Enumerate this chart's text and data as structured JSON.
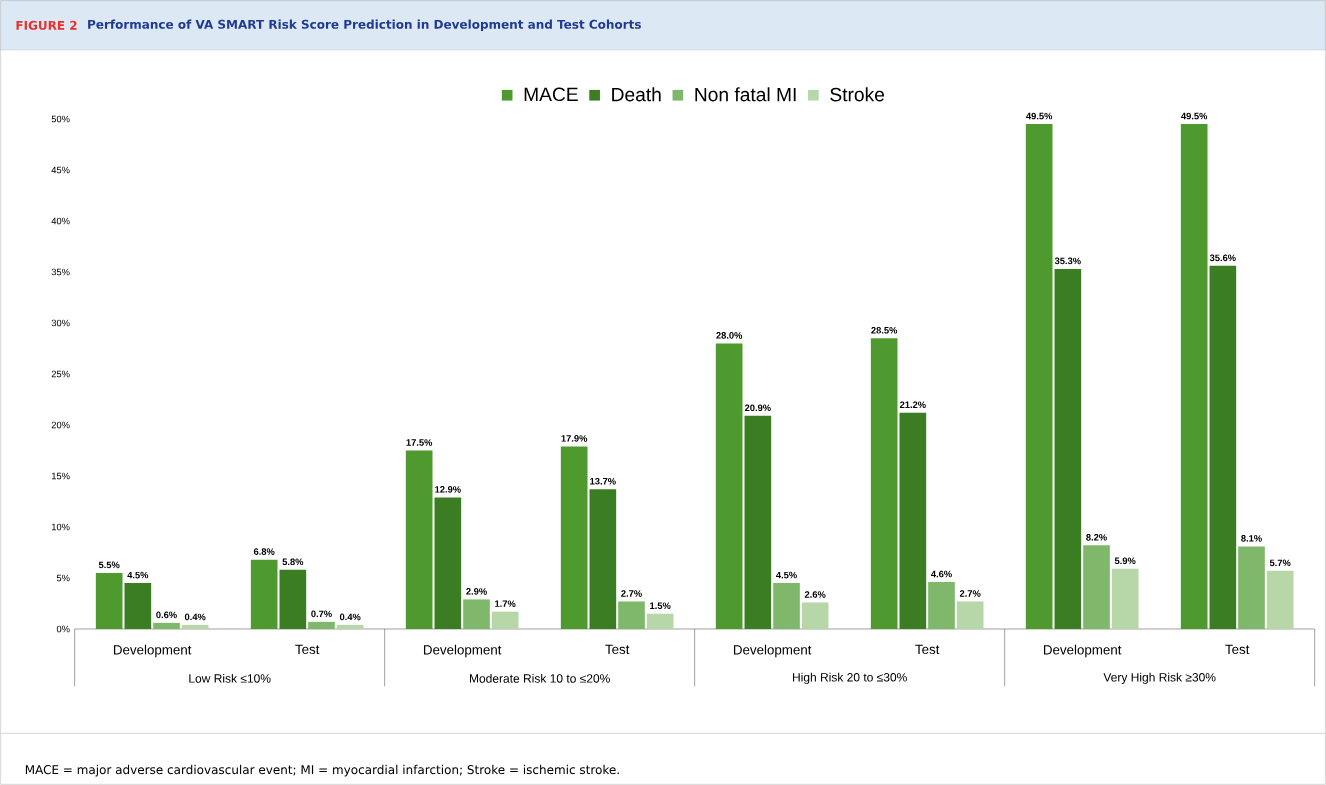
{
  "chart_data": {
    "type": "bar",
    "title": "Performance of VA SMART Risk Score Prediction in Development and Test Cohorts",
    "categories": [
      "Development",
      "Test",
      "Development",
      "Test",
      "Development",
      "Test",
      "Development",
      "Test"
    ],
    "series": [
      {
        "name": "MACE",
        "color": "#4e9a2f",
        "values": [
          5.5,
          6.8,
          17.5,
          17.9,
          28.0,
          28.5,
          49.5,
          49.5
        ],
        "value_labels": [
          "5.5%",
          "6.8%",
          "17.5%",
          "17.9%",
          "28.0%",
          "28.5%",
          "49.5%",
          "49.5%"
        ]
      },
      {
        "name": "Death",
        "color": "#3a7d22",
        "values": [
          4.5,
          5.8,
          12.9,
          13.7,
          20.9,
          21.2,
          35.3,
          35.6
        ],
        "value_labels": [
          "4.5%",
          "5.8%",
          "12.9%",
          "13.7%",
          "20.9%",
          "21.2%",
          "35.3%",
          "35.6%"
        ]
      },
      {
        "name": "Non fatal MI",
        "color": "#80b86b",
        "values": [
          0.6,
          0.7,
          2.9,
          2.7,
          4.5,
          4.6,
          8.2,
          8.1
        ],
        "value_labels": [
          "0.6%",
          "0.7%",
          "2.9%",
          "2.7%",
          "4.5%",
          "4.6%",
          "8.2%",
          "8.1%"
        ]
      },
      {
        "name": "Stroke",
        "color": "#b7d7a8",
        "values": [
          0.4,
          0.4,
          1.7,
          1.5,
          2.6,
          2.7,
          5.9,
          5.7
        ],
        "value_labels": [
          "0.4%",
          "0.4%",
          "1.7%",
          "1.5%",
          "2.6%",
          "2.7%",
          "5.9%",
          "5.7%"
        ]
      }
    ],
    "ylim": [
      0,
      50
    ],
    "yticks": [
      {
        "value": 0,
        "label": "0%"
      },
      {
        "value": 5,
        "label": "5%"
      },
      {
        "value": 10,
        "label": "10%"
      },
      {
        "value": 15,
        "label": "15%"
      },
      {
        "value": 20,
        "label": "20%"
      },
      {
        "value": 25,
        "label": "25%"
      },
      {
        "value": 30,
        "label": "30%"
      },
      {
        "value": 35,
        "label": "35%"
      },
      {
        "value": 40,
        "label": "40%"
      },
      {
        "value": 45,
        "label": "45%"
      },
      {
        "value": 50,
        "label": "50%"
      }
    ],
    "legend": "top",
    "annotations": [
      "FIGURE 2",
      "MACE = major adverse cardiovascular event; MI = myocardial infarction; Stroke = ischemic stroke.",
      "Low Risk ≤10%",
      "Moderate Risk 10 to ≤20%",
      "High Risk 20 to ≤30%",
      "Very High Risk ≥30%"
    ]
  }
}
